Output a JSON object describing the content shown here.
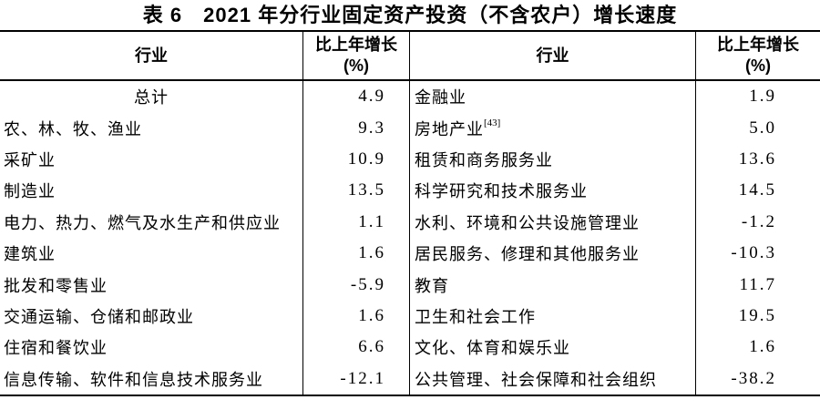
{
  "title": "表 6　2021 年分行业固定资产投资（不含农户）增长速度",
  "table": {
    "headers": {
      "industry": "行业",
      "growth": "比上年增长",
      "growth_unit": "(%)"
    },
    "rows": [
      {
        "left": {
          "label": "总计",
          "value": "4.9"
        },
        "right": {
          "label": "金融业",
          "value": "1.9"
        }
      },
      {
        "left": {
          "label": "农、林、牧、渔业",
          "value": "9.3"
        },
        "right": {
          "label": "房地产业",
          "sup": "[43]",
          "value": "5.0"
        }
      },
      {
        "left": {
          "label": "采矿业",
          "value": "10.9"
        },
        "right": {
          "label": "租赁和商务服务业",
          "value": "13.6"
        }
      },
      {
        "left": {
          "label": "制造业",
          "value": "13.5"
        },
        "right": {
          "label": "科学研究和技术服务业",
          "value": "14.5"
        }
      },
      {
        "left": {
          "label": "电力、热力、燃气及水生产和供应业",
          "value": "1.1"
        },
        "right": {
          "label": "水利、环境和公共设施管理业",
          "value": "-1.2"
        }
      },
      {
        "left": {
          "label": "建筑业",
          "value": "1.6"
        },
        "right": {
          "label": "居民服务、修理和其他服务业",
          "value": "-10.3"
        }
      },
      {
        "left": {
          "label": "批发和零售业",
          "value": "-5.9"
        },
        "right": {
          "label": "教育",
          "value": "11.7"
        }
      },
      {
        "left": {
          "label": "交通运输、仓储和邮政业",
          "value": "1.6"
        },
        "right": {
          "label": "卫生和社会工作",
          "value": "19.5"
        }
      },
      {
        "left": {
          "label": "住宿和餐饮业",
          "value": "6.6"
        },
        "right": {
          "label": "文化、体育和娱乐业",
          "value": "1.6"
        }
      },
      {
        "left": {
          "label": "信息传输、软件和信息技术服务业",
          "value": "-12.1"
        },
        "right": {
          "label": "公共管理、社会保障和社会组织",
          "value": "-38.2"
        }
      }
    ]
  },
  "chart_data": {
    "type": "table",
    "title": "表 6　2021 年分行业固定资产投资（不含农户）增长速度",
    "columns": [
      "行业",
      "比上年增长(%)",
      "行业",
      "比上年增长(%)"
    ],
    "categories": [
      "总计",
      "农、林、牧、渔业",
      "采矿业",
      "制造业",
      "电力、热力、燃气及水生产和供应业",
      "建筑业",
      "批发和零售业",
      "交通运输、仓储和邮政业",
      "住宿和餐饮业",
      "信息传输、软件和信息技术服务业",
      "金融业",
      "房地产业[43]",
      "租赁和商务服务业",
      "科学研究和技术服务业",
      "水利、环境和公共设施管理业",
      "居民服务、修理和其他服务业",
      "教育",
      "卫生和社会工作",
      "文化、体育和娱乐业",
      "公共管理、社会保障和社会组织"
    ],
    "values": [
      4.9,
      9.3,
      10.9,
      13.5,
      1.1,
      1.6,
      -5.9,
      1.6,
      6.6,
      -12.1,
      1.9,
      5.0,
      13.6,
      14.5,
      -1.2,
      -10.3,
      11.7,
      19.5,
      1.6,
      -38.2
    ]
  }
}
